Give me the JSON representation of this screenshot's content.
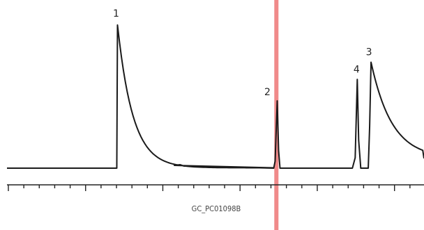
{
  "chart_data": {
    "type": "line",
    "title": "",
    "xlabel": "",
    "ylabel": "",
    "grid": false,
    "x_ticks_labeled": false,
    "xlim": [
      0,
      100
    ],
    "ylim": [
      0,
      100
    ],
    "peaks": [
      {
        "label": "1",
        "x": 26.5,
        "height": 100
      },
      {
        "label": "2",
        "x": 64.8,
        "height": 47
      },
      {
        "label": "4",
        "x": 84.0,
        "height": 62
      },
      {
        "label": "3",
        "x": 87.3,
        "height": 74
      }
    ],
    "marker": {
      "x": 64.6,
      "color": "#f08a8a"
    },
    "trace_color": "#1a1a1a",
    "code": "GC_PC01098B"
  }
}
